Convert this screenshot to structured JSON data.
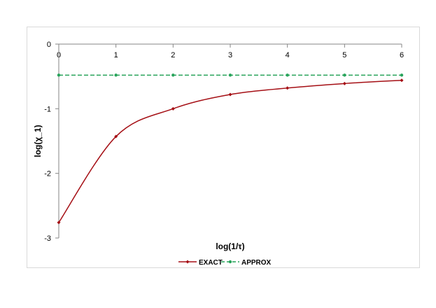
{
  "chart_data": {
    "type": "line",
    "xlabel": "log(1/τ)",
    "ylabel": "log(χ_1)",
    "xlim": [
      0,
      6
    ],
    "ylim": [
      -3,
      0
    ],
    "x_ticks": [
      0,
      1,
      2,
      3,
      4,
      5,
      6
    ],
    "y_ticks": [
      0,
      -1,
      -2,
      -3
    ],
    "x_axis_position": "top",
    "grid": false,
    "legend_position": "bottom",
    "series": [
      {
        "name": "EXACT",
        "color": "#a50f15",
        "line_style": "solid",
        "smooth": true,
        "marker": "diamond",
        "x": [
          0,
          1,
          2,
          3,
          4,
          5,
          6
        ],
        "y": [
          -2.76,
          -1.43,
          -1.0,
          -0.78,
          -0.68,
          -0.61,
          -0.56
        ]
      },
      {
        "name": "APPROX",
        "color": "#27a35a",
        "line_style": "dashed",
        "smooth": false,
        "marker": "circle",
        "x": [
          0,
          1,
          2,
          3,
          4,
          5,
          6
        ],
        "y": [
          -0.48,
          -0.48,
          -0.48,
          -0.48,
          -0.48,
          -0.48,
          -0.48
        ]
      }
    ]
  }
}
